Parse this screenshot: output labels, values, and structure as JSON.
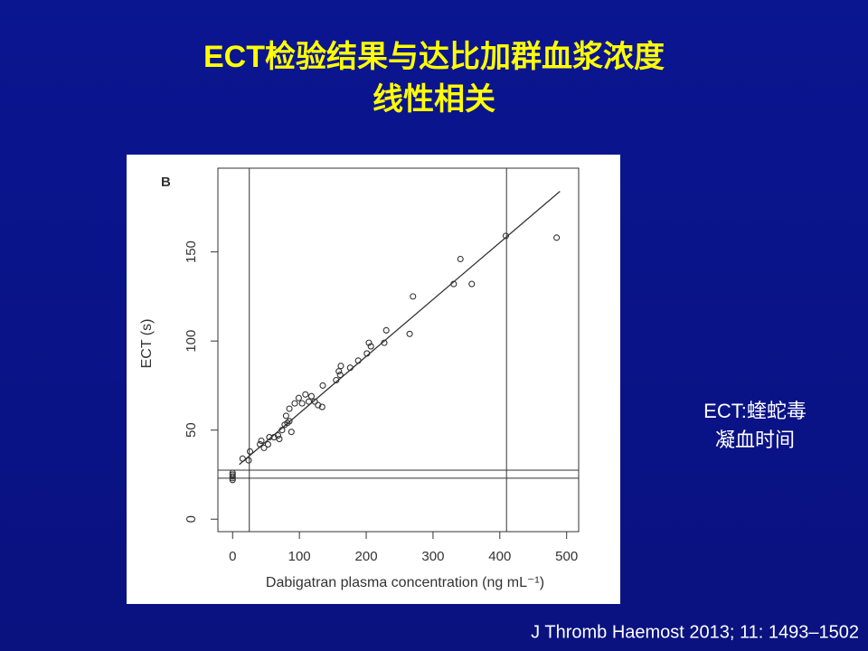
{
  "slide": {
    "title_lines": [
      "ECT检验结果与达比加群血浆浓度",
      "线性相关"
    ],
    "note_lines": [
      "ECT:蝰蛇毒",
      "凝血时间"
    ],
    "citation": "J Thromb Haemost 2013; 11: 1493–1502"
  },
  "chart_data": {
    "type": "scatter",
    "panel_label": "B",
    "xlabel": "Dabigatran plasma concentration (ng mL⁻¹)",
    "ylabel": "ECT (s)",
    "color": "#333333",
    "x": [
      0,
      0,
      0,
      0,
      0,
      15,
      26,
      24,
      43,
      41,
      47,
      53,
      55,
      62,
      68,
      70,
      74,
      78,
      82,
      85,
      80,
      85,
      88,
      93,
      99,
      104,
      109,
      114,
      118,
      123,
      128,
      134,
      135,
      155,
      159,
      162,
      161,
      176,
      188,
      201,
      204,
      207,
      227,
      230,
      265,
      270,
      331,
      341,
      358,
      409,
      485
    ],
    "values": [
      22,
      23,
      24,
      25,
      26,
      34,
      38,
      33,
      44,
      42,
      40,
      42,
      46,
      46,
      47,
      45,
      50,
      53,
      54,
      55,
      58,
      62,
      49,
      65,
      68,
      65,
      70,
      66,
      69,
      66,
      64,
      63,
      75,
      78,
      83,
      86,
      81,
      85,
      89,
      93,
      99,
      97,
      99,
      106,
      104,
      125,
      132,
      146,
      132,
      159,
      158
    ],
    "xlim": [
      -22,
      518
    ],
    "ylim": [
      -7,
      197
    ],
    "xticks": [
      0,
      100,
      200,
      300,
      400,
      500
    ],
    "yticks": [
      0,
      50,
      100,
      150
    ],
    "fit_line": {
      "x": [
        10,
        490
      ],
      "y": [
        30.7,
        184
      ]
    },
    "vlines": [
      25,
      410
    ],
    "hlines": [
      23,
      27.5
    ]
  }
}
